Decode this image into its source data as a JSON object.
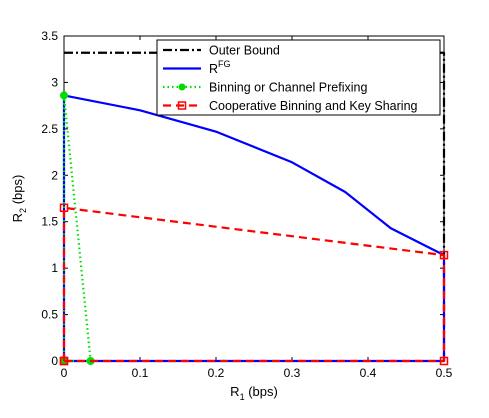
{
  "chart_data": {
    "type": "line",
    "xlabel": "R",
    "xlabel_sub": "1",
    "xlabel_unit": " (bps)",
    "ylabel": "R",
    "ylabel_sub": "2",
    "ylabel_unit": " (bps)",
    "xlim": [
      0,
      0.5
    ],
    "ylim": [
      0,
      3.5
    ],
    "xticks": [
      0,
      0.1,
      0.2,
      0.3,
      0.4,
      0.5
    ],
    "xtick_labels": [
      "0",
      "0.1",
      "0.2",
      "0.3",
      "0.4",
      "0.5"
    ],
    "yticks": [
      0,
      0.5,
      1,
      1.5,
      2,
      2.5,
      3,
      3.5
    ],
    "ytick_labels": [
      "0",
      "0.5",
      "1",
      "1.5",
      "2",
      "2.5",
      "3",
      "3.5"
    ],
    "grid": false,
    "legend_position": "top-right",
    "series": [
      {
        "name": "Outer Bound",
        "color": "#000000",
        "style": "dash-dot",
        "marker": "none",
        "points": [
          [
            0,
            3.32
          ],
          [
            0.5,
            3.32
          ],
          [
            0.5,
            0
          ]
        ]
      },
      {
        "name": "R",
        "name_sup": "FG",
        "color": "#0000ff",
        "style": "solid",
        "marker": "none",
        "points": [
          [
            0,
            0
          ],
          [
            0,
            2.86
          ],
          [
            0.1,
            2.7
          ],
          [
            0.2,
            2.47
          ],
          [
            0.3,
            2.14
          ],
          [
            0.37,
            1.82
          ],
          [
            0.43,
            1.43
          ],
          [
            0.5,
            1.14
          ],
          [
            0.5,
            0
          ],
          [
            0,
            0
          ]
        ]
      },
      {
        "name": "Binning or Channel Prefixing",
        "color": "#00dd00",
        "style": "dotted",
        "marker": "circle",
        "points": [
          [
            0,
            0
          ],
          [
            0,
            2.86
          ],
          [
            0.035,
            0
          ],
          [
            0,
            0
          ]
        ]
      },
      {
        "name": "Cooperative Binning and Key Sharing",
        "color": "#ff0000",
        "style": "dashed",
        "marker": "square",
        "points": [
          [
            0,
            0
          ],
          [
            0,
            1.65
          ],
          [
            0.5,
            1.14
          ],
          [
            0.5,
            0
          ],
          [
            0,
            0
          ]
        ]
      }
    ]
  }
}
